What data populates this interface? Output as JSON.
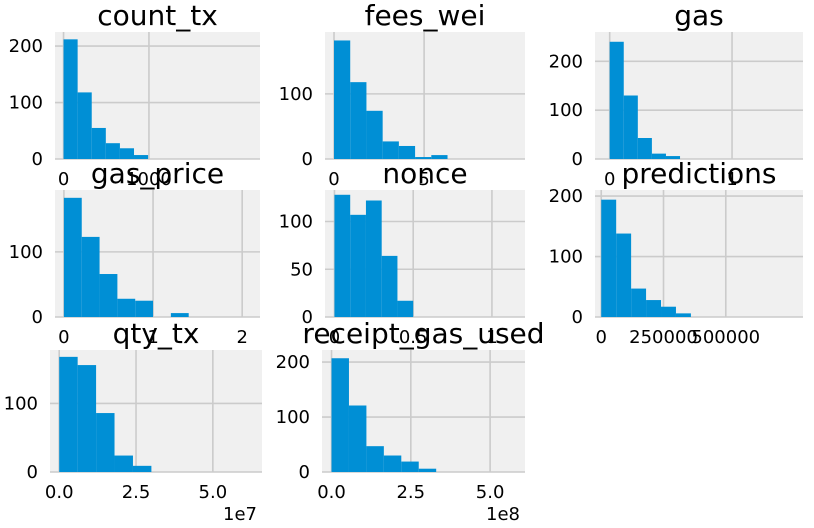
{
  "bar_color": "#008fd5",
  "panel_background": "#f0f0f0",
  "grid_color": "#cbcbcb",
  "chart_data": [
    {
      "type": "bar",
      "title": "count_tx",
      "xlim": [
        -100,
        2300
      ],
      "ylim": [
        0,
        225
      ],
      "xticks": [
        {
          "v": 0,
          "label": "0"
        },
        {
          "v": 1000,
          "label": "1000"
        }
      ],
      "yticks": [
        {
          "v": 0,
          "label": "0"
        },
        {
          "v": 100,
          "label": "100"
        },
        {
          "v": 200,
          "label": "200"
        }
      ],
      "bins": [
        0,
        165,
        330,
        495,
        660,
        825,
        990,
        1155,
        1320,
        1485,
        1650
      ],
      "counts": [
        212,
        118,
        55,
        28,
        19,
        7,
        0,
        0,
        0,
        0
      ],
      "offset_label": ""
    },
    {
      "type": "bar",
      "title": "fees_wei",
      "xlim": [
        -0.5,
        10.6
      ],
      "ylim": [
        0,
        195
      ],
      "xticks": [
        {
          "v": 0,
          "label": "0"
        },
        {
          "v": 5,
          "label": "5"
        }
      ],
      "yticks": [
        {
          "v": 0,
          "label": "0"
        },
        {
          "v": 100,
          "label": "100"
        }
      ],
      "bins": [
        0,
        0.9,
        1.8,
        2.7,
        3.6,
        4.5,
        5.4,
        6.3,
        7.2,
        8.1,
        9.0
      ],
      "counts": [
        182,
        118,
        74,
        27,
        20,
        3,
        6,
        0,
        0,
        0
      ],
      "offset_label": ""
    },
    {
      "type": "bar",
      "title": "gas",
      "xlim": [
        -0.12,
        1.58
      ],
      "ylim": [
        0,
        260
      ],
      "xticks": [
        {
          "v": 0,
          "label": "0"
        },
        {
          "v": 1,
          "label": "1"
        }
      ],
      "yticks": [
        {
          "v": 0,
          "label": "0"
        },
        {
          "v": 100,
          "label": "100"
        },
        {
          "v": 200,
          "label": "200"
        }
      ],
      "bins": [
        0,
        0.115,
        0.23,
        0.345,
        0.46,
        0.575,
        0.69,
        0.805,
        0.92,
        1.035,
        1.15
      ],
      "counts": [
        240,
        130,
        43,
        11,
        6,
        0,
        0,
        0,
        0,
        0
      ],
      "offset_label": ""
    },
    {
      "type": "bar",
      "title": "gas_price",
      "xlim": [
        -0.1,
        2.2
      ],
      "ylim": [
        0,
        195
      ],
      "xticks": [
        {
          "v": 0,
          "label": "0"
        },
        {
          "v": 1,
          "label": "1"
        },
        {
          "v": 2,
          "label": "2"
        }
      ],
      "yticks": [
        {
          "v": 0,
          "label": "0"
        },
        {
          "v": 100,
          "label": "100"
        }
      ],
      "bins": [
        0,
        0.2,
        0.4,
        0.6,
        0.8,
        1.0,
        1.2,
        1.4,
        1.6,
        1.8,
        2.0
      ],
      "counts": [
        183,
        123,
        66,
        28,
        25,
        0,
        6,
        0,
        0,
        0
      ],
      "offset_label": ""
    },
    {
      "type": "bar",
      "title": "nonce",
      "xlim": [
        -0.06,
        1.21
      ],
      "ylim": [
        0,
        133
      ],
      "xticks": [
        {
          "v": 0,
          "label": "0"
        },
        {
          "v": 0.5,
          "label": "0.5"
        },
        {
          "v": 1,
          "label": "1"
        }
      ],
      "yticks": [
        {
          "v": 0,
          "label": "0"
        },
        {
          "v": 50,
          "label": "50"
        },
        {
          "v": 100,
          "label": "100"
        }
      ],
      "bins": [
        0,
        0.1,
        0.2,
        0.3,
        0.4,
        0.5,
        0.6
      ],
      "counts": [
        128,
        107,
        122,
        64,
        17,
        0
      ],
      "offset_label": ""
    },
    {
      "type": "bar",
      "title": "predictions",
      "xlim": [
        -25000,
        810000
      ],
      "ylim": [
        0,
        210
      ],
      "xticks": [
        {
          "v": 0,
          "label": "0"
        },
        {
          "v": 250000,
          "label": "250000"
        },
        {
          "v": 500000,
          "label": "500000"
        }
      ],
      "yticks": [
        {
          "v": 0,
          "label": "0"
        },
        {
          "v": 100,
          "label": "100"
        },
        {
          "v": 200,
          "label": "200"
        }
      ],
      "bins": [
        0,
        60000,
        120000,
        180000,
        240000,
        300000,
        360000,
        420000,
        480000,
        540000,
        600000
      ],
      "counts": [
        194,
        138,
        47,
        28,
        17,
        6,
        0,
        0,
        0,
        0
      ],
      "offset_label": ""
    },
    {
      "type": "bar",
      "title": "qty_tx",
      "xlim": [
        -0.3,
        6.6
      ],
      "ylim": [
        0,
        178
      ],
      "xticks": [
        {
          "v": 0,
          "label": "0.0"
        },
        {
          "v": 2.5,
          "label": "2.5"
        },
        {
          "v": 5,
          "label": "5.0"
        }
      ],
      "yticks": [
        {
          "v": 0,
          "label": "0"
        },
        {
          "v": 100,
          "label": "100"
        }
      ],
      "bins": [
        0,
        0.6,
        1.2,
        1.8,
        2.4,
        3.0,
        3.6,
        4.2,
        4.8,
        5.4,
        6.0
      ],
      "counts": [
        168,
        156,
        86,
        24,
        9,
        0,
        0,
        0,
        0,
        0
      ],
      "offset_label": "1e7"
    },
    {
      "type": "bar",
      "title": "receipt_gas_used",
      "xlim": [
        -0.3,
        6.1
      ],
      "ylim": [
        0,
        222
      ],
      "xticks": [
        {
          "v": 0,
          "label": "0.0"
        },
        {
          "v": 2.5,
          "label": "2.5"
        },
        {
          "v": 5,
          "label": "5.0"
        }
      ],
      "yticks": [
        {
          "v": 0,
          "label": "0"
        },
        {
          "v": 100,
          "label": "100"
        },
        {
          "v": 200,
          "label": "200"
        }
      ],
      "bins": [
        0,
        0.55,
        1.1,
        1.65,
        2.2,
        2.75,
        3.3,
        3.85,
        4.4,
        4.95,
        5.5
      ],
      "counts": [
        207,
        121,
        47,
        30,
        19,
        6,
        0,
        0,
        0,
        0
      ],
      "offset_label": "1e8"
    }
  ]
}
